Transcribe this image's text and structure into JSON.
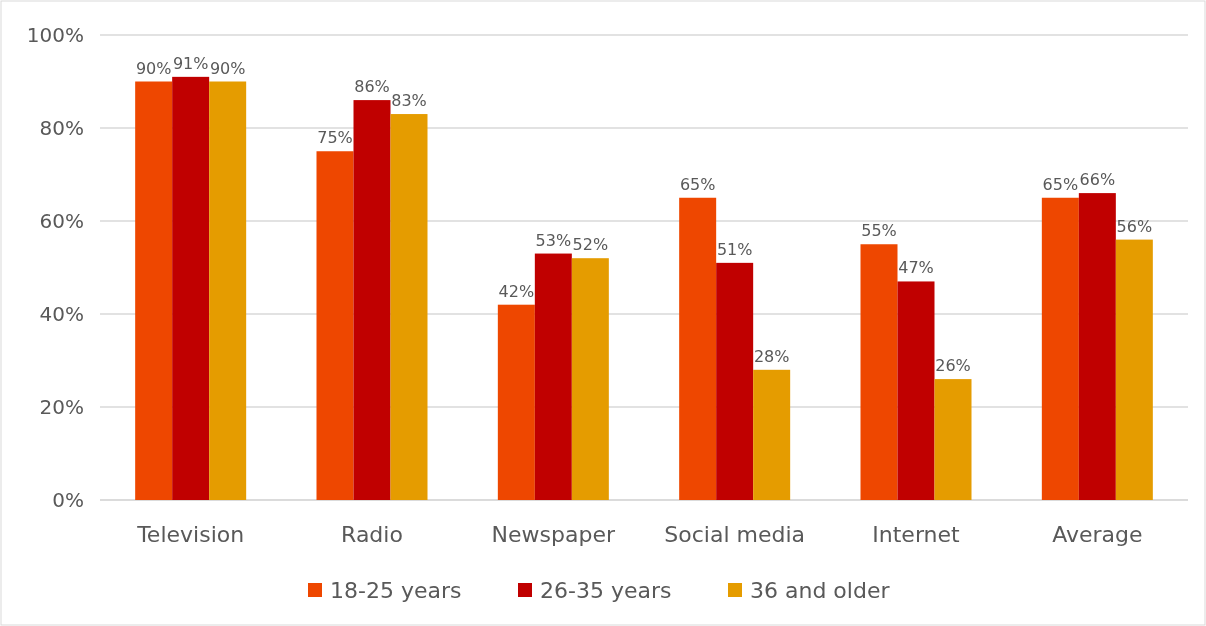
{
  "chart_data": {
    "type": "bar",
    "categories": [
      "Television",
      "Radio",
      "Newspaper",
      "Social media",
      "Internet",
      "Average"
    ],
    "series": [
      {
        "name": "18-25 years",
        "color": "#ee4700",
        "values": [
          90,
          75,
          42,
          65,
          55,
          65
        ],
        "value_labels": [
          "90%",
          "75%",
          "42%",
          "65%",
          "55%",
          "65%"
        ]
      },
      {
        "name": "26-35 years",
        "color": "#c00000",
        "values": [
          91,
          86,
          53,
          51,
          47,
          66
        ],
        "value_labels": [
          "91%",
          "86%",
          "53%",
          "51%",
          "47%",
          "66%"
        ]
      },
      {
        "name": "36 and older",
        "color": "#e59c00",
        "values": [
          90,
          83,
          52,
          28,
          26,
          56
        ],
        "value_labels": [
          "90%",
          "83%",
          "52%",
          "28%",
          "26%",
          "56%"
        ]
      }
    ],
    "ylim": [
      0,
      100
    ],
    "yticks": [
      {
        "value": 0,
        "label": "0%"
      },
      {
        "value": 20,
        "label": "20%"
      },
      {
        "value": 40,
        "label": "40%"
      },
      {
        "value": 60,
        "label": "60%"
      },
      {
        "value": 80,
        "label": "80%"
      },
      {
        "value": 100,
        "label": "100%"
      }
    ],
    "grid": "y",
    "legend": "bottom"
  }
}
